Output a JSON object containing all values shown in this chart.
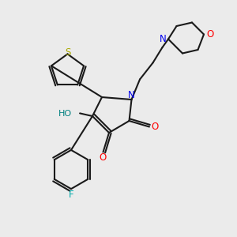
{
  "background_color": "#ebebeb",
  "bond_color": "#1a1a1a",
  "atom_colors": {
    "N": "#0000ee",
    "O": "#ff0000",
    "S": "#aaaa00",
    "F": "#00aaaa",
    "HO": "#008080"
  },
  "figsize": [
    3.0,
    3.0
  ],
  "dpi": 100
}
